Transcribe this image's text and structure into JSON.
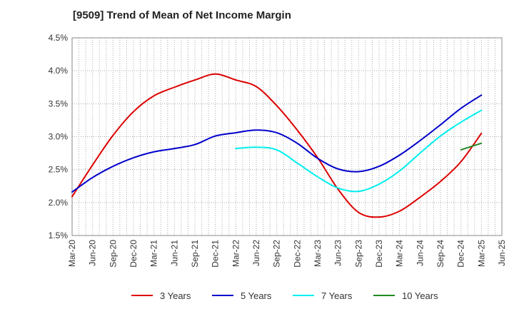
{
  "title": "[9509]  Trend of Mean of Net Income Margin",
  "chart_data": {
    "type": "line",
    "title": "[9509]  Trend of Mean of Net Income Margin",
    "xlabel": "",
    "ylabel": "",
    "ylim": [
      1.5,
      4.5
    ],
    "yticks": [
      "1.5%",
      "2.0%",
      "2.5%",
      "3.0%",
      "3.5%",
      "4.0%",
      "4.5%"
    ],
    "xticks": [
      "Mar-20",
      "Jun-20",
      "Sep-20",
      "Dec-20",
      "Mar-21",
      "Jun-21",
      "Sep-21",
      "Dec-21",
      "Mar-22",
      "Jun-22",
      "Sep-22",
      "Dec-22",
      "Mar-23",
      "Jun-23",
      "Sep-23",
      "Dec-23",
      "Mar-24",
      "Jun-24",
      "Sep-24",
      "Dec-24",
      "Mar-25",
      "Jun-25"
    ],
    "grid": true,
    "legend_position": "bottom",
    "series": [
      {
        "name": "3 Years",
        "color": "#dd0000",
        "x": [
          "Mar-20",
          "Jun-20",
          "Sep-20",
          "Dec-20",
          "Mar-21",
          "Jun-21",
          "Sep-21",
          "Dec-21",
          "Mar-22",
          "Jun-22",
          "Sep-22",
          "Dec-22",
          "Mar-23",
          "Jun-23",
          "Sep-23",
          "Dec-23",
          "Mar-24",
          "Jun-24",
          "Sep-24",
          "Dec-24",
          "Mar-25"
        ],
        "values": [
          2.09,
          2.57,
          3.02,
          3.38,
          3.62,
          3.75,
          3.86,
          3.95,
          3.86,
          3.76,
          3.47,
          3.1,
          2.68,
          2.2,
          1.85,
          1.78,
          1.87,
          2.08,
          2.32,
          2.62,
          3.05
        ]
      },
      {
        "name": "5 Years",
        "color": "#0000cc",
        "x": [
          "Mar-20",
          "Jun-20",
          "Sep-20",
          "Dec-20",
          "Mar-21",
          "Jun-21",
          "Sep-21",
          "Dec-21",
          "Mar-22",
          "Jun-22",
          "Sep-22",
          "Dec-22",
          "Mar-23",
          "Jun-23",
          "Sep-23",
          "Dec-23",
          "Mar-24",
          "Jun-24",
          "Sep-24",
          "Dec-24",
          "Mar-25"
        ],
        "values": [
          2.16,
          2.38,
          2.55,
          2.68,
          2.77,
          2.82,
          2.88,
          3.01,
          3.06,
          3.1,
          3.06,
          2.9,
          2.67,
          2.51,
          2.47,
          2.55,
          2.72,
          2.94,
          3.18,
          3.43,
          3.63
        ]
      },
      {
        "name": "7 Years",
        "color": "#00eeee",
        "x": [
          "Mar-22",
          "Jun-22",
          "Sep-22",
          "Dec-22",
          "Mar-23",
          "Jun-23",
          "Sep-23",
          "Dec-23",
          "Mar-24",
          "Jun-24",
          "Sep-24",
          "Dec-24",
          "Mar-25"
        ],
        "values": [
          2.82,
          2.84,
          2.8,
          2.6,
          2.39,
          2.22,
          2.17,
          2.28,
          2.48,
          2.75,
          3.01,
          3.22,
          3.4
        ]
      },
      {
        "name": "10 Years",
        "color": "#228822",
        "x": [
          "Dec-24",
          "Mar-25"
        ],
        "values": [
          2.8,
          2.9
        ]
      }
    ]
  }
}
